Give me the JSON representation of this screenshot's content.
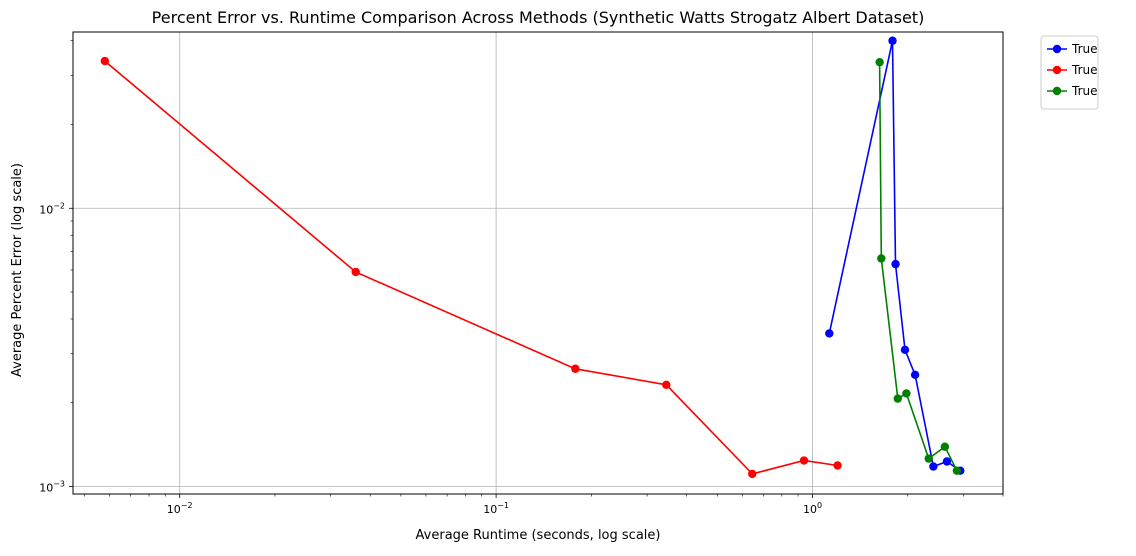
{
  "chart_data": {
    "type": "line",
    "title": "Percent Error vs. Runtime Comparison Across Methods (Synthetic Watts Strogatz Albert Dataset)",
    "xlabel": "Average Runtime (seconds, log scale)",
    "ylabel": "Average Percent Error (log scale)",
    "x_scale": "log",
    "y_scale": "log",
    "xlim": [
      0.0046,
      4.0
    ],
    "ylim": [
      0.00094,
      0.043
    ],
    "grid": true,
    "legend_placement": "outside top-right",
    "x_ticks": [
      {
        "value": 0.01,
        "label": "10",
        "exp": "−2"
      },
      {
        "value": 0.1,
        "label": "10",
        "exp": "−1"
      },
      {
        "value": 1,
        "label": "10",
        "exp": "0"
      }
    ],
    "y_ticks": [
      {
        "value": 0.001,
        "label": "10",
        "exp": "−3"
      },
      {
        "value": 0.01,
        "label": "10",
        "exp": "−2"
      }
    ],
    "series": [
      {
        "name": "True",
        "color": "#0000ff",
        "x": [
          1.13,
          1.79,
          1.83,
          1.96,
          2.11,
          2.41,
          2.66,
          2.93
        ],
        "y": [
          0.00355,
          0.04,
          0.0063,
          0.0031,
          0.00252,
          0.00118,
          0.00123,
          0.00114
        ]
      },
      {
        "name": "True",
        "color": "#ff0000",
        "x": [
          0.0058,
          0.036,
          0.178,
          0.345,
          0.645,
          0.94,
          1.2
        ],
        "y": [
          0.0338,
          0.0059,
          0.00265,
          0.00232,
          0.00111,
          0.00124,
          0.00119
        ]
      },
      {
        "name": "True",
        "color": "#008000",
        "x": [
          1.63,
          1.65,
          1.86,
          1.98,
          2.33,
          2.62,
          2.86
        ],
        "y": [
          0.0335,
          0.0066,
          0.00207,
          0.00216,
          0.00126,
          0.00139,
          0.00114
        ]
      }
    ]
  }
}
